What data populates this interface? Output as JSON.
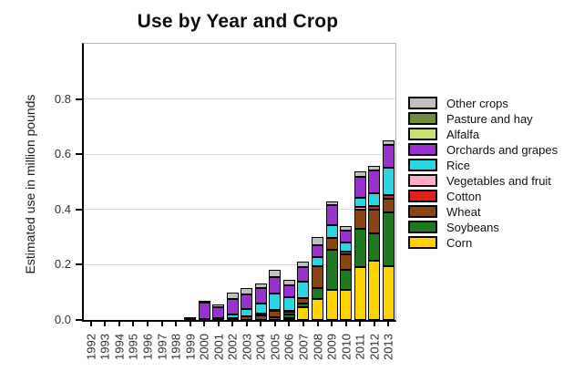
{
  "title": "Use by Year and Crop",
  "chart_data": {
    "type": "bar",
    "stacked": true,
    "title": "Use by Year and Crop",
    "xlabel": "",
    "ylabel": "Estimated use in million pounds",
    "ylim": [
      0,
      1.0
    ],
    "yticks": [
      0.0,
      0.2,
      0.4,
      0.6,
      0.8
    ],
    "ytick_labels": [
      "0.0",
      "0.2",
      "0.4",
      "0.6",
      "0.8"
    ],
    "grid": true,
    "legend_position": "right",
    "categories": [
      "1992",
      "1993",
      "1994",
      "1995",
      "1996",
      "1997",
      "1998",
      "1999",
      "2000",
      "2001",
      "2002",
      "2003",
      "2004",
      "2005",
      "2006",
      "2007",
      "2008",
      "2009",
      "2010",
      "2011",
      "2012",
      "2013"
    ],
    "stack_order": "bottom-to-top",
    "series": [
      {
        "name": "Corn",
        "color": "#FFD300",
        "values": [
          0,
          0,
          0,
          0,
          0,
          0,
          0,
          0,
          0,
          0,
          0,
          0,
          0,
          0,
          0.008,
          0.045,
          0.077,
          0.11,
          0.108,
          0.19,
          0.215,
          0.195
        ]
      },
      {
        "name": "Soybeans",
        "color": "#1F7A1F",
        "values": [
          0,
          0,
          0,
          0,
          0,
          0,
          0,
          0,
          0,
          0,
          0,
          0,
          0,
          0.01,
          0.011,
          0.013,
          0.039,
          0.145,
          0.072,
          0.14,
          0.1,
          0.193
        ]
      },
      {
        "name": "Wheat",
        "color": "#8B4513",
        "values": [
          0,
          0,
          0,
          0,
          0,
          0,
          0,
          0,
          0,
          0,
          0.004,
          0.012,
          0.015,
          0.022,
          0.011,
          0.02,
          0.08,
          0.042,
          0.058,
          0.069,
          0.086,
          0.052
        ]
      },
      {
        "name": "Cotton",
        "color": "#E3211C",
        "values": [
          0,
          0,
          0,
          0,
          0,
          0,
          0,
          0,
          0,
          0,
          0,
          0,
          0,
          0,
          0,
          0,
          0,
          0,
          0.008,
          0,
          0.013,
          0.011
        ]
      },
      {
        "name": "Vegetables and fruit",
        "color": "#FFAEC9",
        "values": [
          0,
          0,
          0,
          0,
          0,
          0,
          0,
          0.002,
          0.005,
          0.004,
          0.004,
          0.002,
          0.008,
          0.005,
          0.002,
          0.002,
          0,
          0,
          0.002,
          0.01,
          0,
          0
        ]
      },
      {
        "name": "Rice",
        "color": "#2BD5E4",
        "values": [
          0,
          0,
          0,
          0,
          0,
          0,
          0,
          0,
          0,
          0.003,
          0.013,
          0.026,
          0.035,
          0.06,
          0.052,
          0.058,
          0.032,
          0.045,
          0.031,
          0.033,
          0.044,
          0.1
        ]
      },
      {
        "name": "Orchards and grapes",
        "color": "#9932CC",
        "values": [
          0,
          0,
          0,
          0,
          0,
          0,
          0,
          0.002,
          0.057,
          0.04,
          0.055,
          0.053,
          0.057,
          0.058,
          0.042,
          0.055,
          0.042,
          0.075,
          0.046,
          0.076,
          0.082,
          0.083
        ]
      },
      {
        "name": "Alfalfa",
        "color": "#C9E26E",
        "values": [
          0,
          0,
          0,
          0,
          0,
          0,
          0,
          0,
          0,
          0,
          0,
          0,
          0,
          0,
          0,
          0,
          0,
          0,
          0,
          0,
          0,
          0
        ]
      },
      {
        "name": "Pasture and hay",
        "color": "#6F8F3A",
        "values": [
          0,
          0,
          0,
          0,
          0,
          0,
          0,
          0,
          0,
          0,
          0,
          0,
          0,
          0,
          0,
          0,
          0,
          0,
          0,
          0,
          0,
          0
        ]
      },
      {
        "name": "Other crops",
        "color": "#C0C0C0",
        "values": [
          0,
          0,
          0,
          0,
          0,
          0,
          0,
          0,
          0.003,
          0.008,
          0.024,
          0.022,
          0.017,
          0.027,
          0.019,
          0.017,
          0.03,
          0.013,
          0.015,
          0.02,
          0.017,
          0.016
        ]
      }
    ],
    "legend_items_top_to_bottom": [
      "Other crops",
      "Pasture and hay",
      "Alfalfa",
      "Orchards and grapes",
      "Rice",
      "Vegetables and fruit",
      "Cotton",
      "Wheat",
      "Soybeans",
      "Corn"
    ]
  }
}
